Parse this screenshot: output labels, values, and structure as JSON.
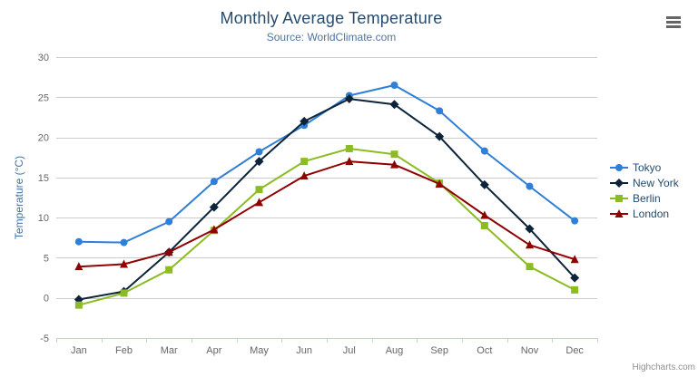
{
  "header": {
    "title": "Monthly Average Temperature",
    "subtitle": "Source: WorldClimate.com"
  },
  "credits": {
    "label": "Highcharts.com"
  },
  "icons": {
    "context_menu": "hamburger-icon"
  },
  "chart_data": {
    "type": "line",
    "title": "Monthly Average Temperature",
    "subtitle": "Source: WorldClimate.com",
    "categories": [
      "Jan",
      "Feb",
      "Mar",
      "Apr",
      "May",
      "Jun",
      "Jul",
      "Aug",
      "Sep",
      "Oct",
      "Nov",
      "Dec"
    ],
    "xlabel": "",
    "ylabel": "Temperature (°C)",
    "ylim": [
      -5,
      30
    ],
    "ytick_step": 5,
    "yticks": [
      -5,
      0,
      5,
      10,
      15,
      20,
      25,
      30
    ],
    "grid": true,
    "legend_position": "right",
    "series": [
      {
        "name": "Tokyo",
        "color": "#2f7ed8",
        "marker": "circle",
        "values": [
          7.0,
          6.9,
          9.5,
          14.5,
          18.2,
          21.5,
          25.2,
          26.5,
          23.3,
          18.3,
          13.9,
          9.6
        ]
      },
      {
        "name": "New York",
        "color": "#0d233a",
        "marker": "diamond",
        "values": [
          -0.2,
          0.8,
          5.7,
          11.3,
          17.0,
          22.0,
          24.8,
          24.1,
          20.1,
          14.1,
          8.6,
          2.5
        ]
      },
      {
        "name": "Berlin",
        "color": "#8bbc21",
        "marker": "square",
        "values": [
          -0.9,
          0.6,
          3.5,
          8.4,
          13.5,
          17.0,
          18.6,
          17.9,
          14.3,
          9.0,
          3.9,
          1.0
        ]
      },
      {
        "name": "London",
        "color": "#910000",
        "marker": "triangle",
        "values": [
          3.9,
          4.2,
          5.7,
          8.5,
          11.9,
          15.2,
          17.0,
          16.6,
          14.2,
          10.3,
          6.6,
          4.8
        ]
      }
    ],
    "axis_colors": {
      "line": "#c0d0e0",
      "grid": "#cbcbcb",
      "tick_label": "#666666",
      "axis_title": "#4572a7"
    }
  }
}
